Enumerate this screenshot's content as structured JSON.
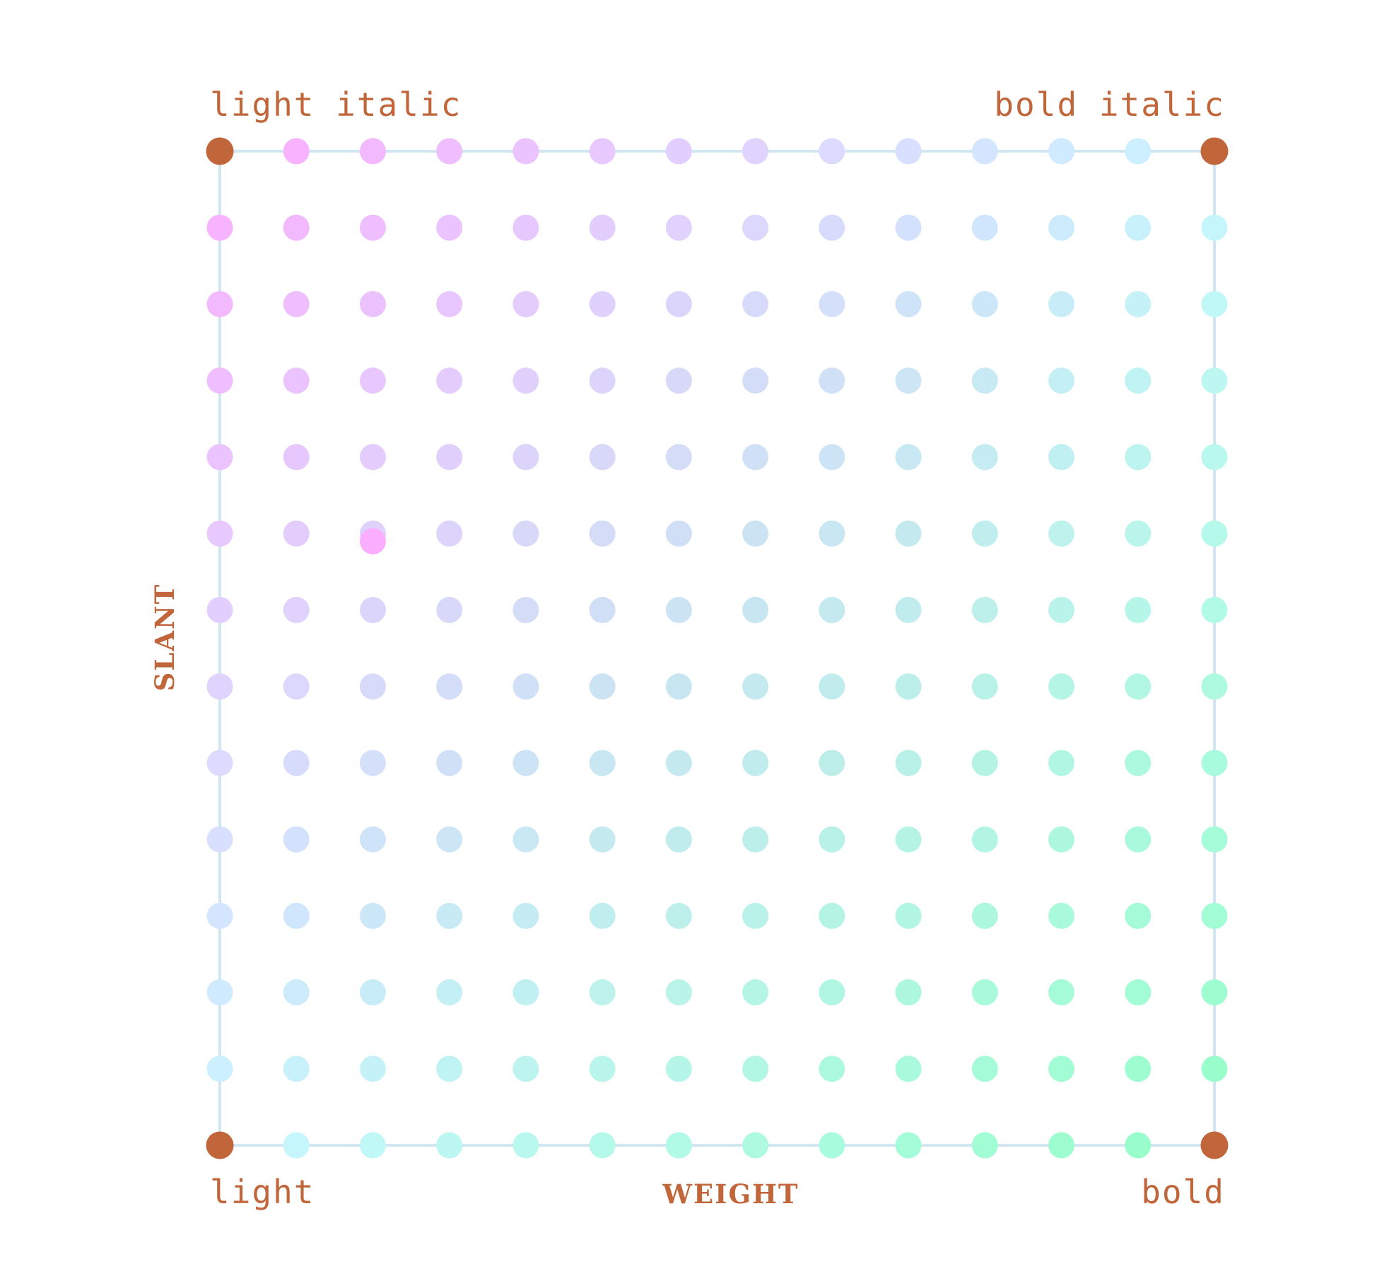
{
  "corners": {
    "top_left": "light italic",
    "top_right": "bold italic",
    "bottom_left": "light",
    "bottom_right": "bold"
  },
  "axes": {
    "x": "WEIGHT",
    "y": "SLANT"
  },
  "grid": {
    "columns": 14,
    "rows": 14
  },
  "colors": {
    "label": "#c0663a",
    "corner_dot": "#c0663a",
    "frame": "#d2e6f2",
    "top_left_gradient": "#fbaeff",
    "bottom_right_gradient": "#96ffc8",
    "top_right_gradient": "#c8f5ff",
    "bottom_left_gradient": "#c8f5ff",
    "outlier_dot": "#fbaeff"
  },
  "outlier": {
    "column": 2,
    "row": 5
  }
}
